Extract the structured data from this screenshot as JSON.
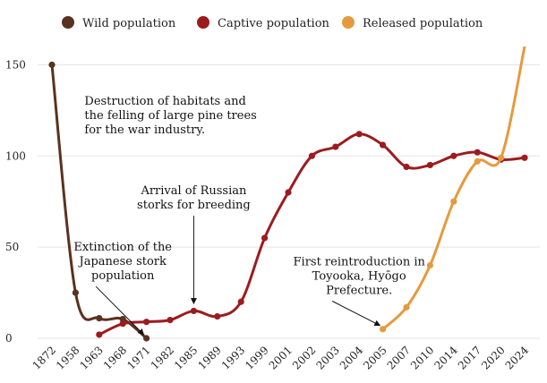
{
  "chart_data": {
    "type": "line",
    "title": "",
    "xlabel": "",
    "ylabel": "",
    "categories": [
      "1872",
      "1958",
      "1963",
      "1968",
      "1971",
      "1982",
      "1985",
      "1989",
      "1993",
      "1999",
      "2001",
      "2002",
      "2003",
      "2004",
      "2005",
      "2007",
      "2010",
      "2014",
      "2017",
      "2020",
      "2024"
    ],
    "ylim": [
      0,
      160
    ],
    "yticks": [
      0,
      50,
      100,
      150
    ],
    "grid": "horizontal",
    "legend": "top",
    "series": [
      {
        "name": "Wild population",
        "color": "#5a3220",
        "values": [
          150,
          25,
          11,
          10.5,
          0,
          null,
          null,
          null,
          null,
          null,
          null,
          null,
          null,
          null,
          null,
          null,
          null,
          null,
          null,
          null,
          null
        ]
      },
      {
        "name": "Captive population",
        "color": "#9b1c1f",
        "values": [
          null,
          null,
          2,
          8,
          9,
          10,
          15,
          12,
          20,
          55,
          80,
          100,
          105,
          112,
          106,
          94,
          95,
          100,
          102,
          98,
          99
        ]
      },
      {
        "name": "Released population",
        "color": "#e59a3f",
        "values": [
          null,
          null,
          null,
          null,
          null,
          null,
          null,
          null,
          null,
          null,
          null,
          null,
          null,
          null,
          5,
          17,
          40,
          75,
          97,
          99,
          160
        ]
      }
    ],
    "annotations": [
      {
        "lines": [
          "Destruction of habitats and",
          "the felling of large pine trees",
          "for the war industry."
        ],
        "x": "1958",
        "y": 128,
        "anchor": "start",
        "arrow": false
      },
      {
        "lines": [
          "Extinction of the",
          "Japanese stork",
          "population"
        ],
        "x": "1968",
        "y": 48,
        "anchor": "middle",
        "arrow_to": {
          "x": "1971",
          "y": 0
        }
      },
      {
        "lines": [
          "Arrival of Russian",
          "storks for breeding"
        ],
        "x": "1985",
        "y": 79,
        "anchor": "middle",
        "arrow_to": {
          "x": "1985",
          "y": 17
        }
      },
      {
        "lines": [
          "First reintroduction in",
          "Toyooka, Hyōgo",
          "Prefecture."
        ],
        "x": "2004",
        "y": 40,
        "anchor": "middle",
        "arrow_to": {
          "x": "2005",
          "y": 5
        }
      }
    ]
  }
}
